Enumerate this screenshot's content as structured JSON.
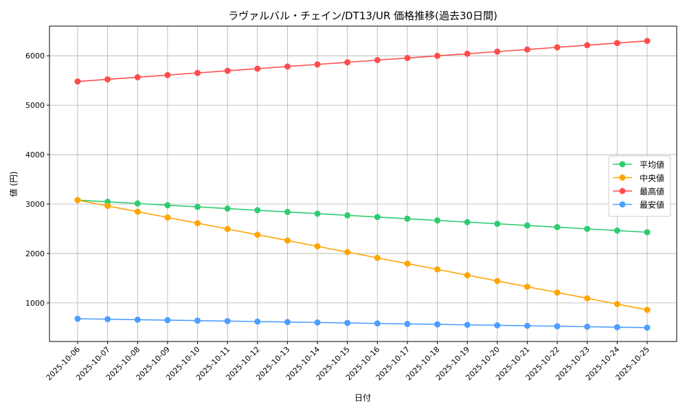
{
  "chart_data": {
    "type": "line",
    "title": "ラヴァルバル・チェイン/DT13/UR 価格推移(過去30日間)",
    "xlabel": "日付",
    "ylabel": "値 (円)",
    "ylim": [
      220,
      6600
    ],
    "yticks": [
      1000,
      2000,
      3000,
      4000,
      5000,
      6000
    ],
    "grid": true,
    "legend_position": "center-right",
    "x": [
      "2025-10-06",
      "2025-10-07",
      "2025-10-08",
      "2025-10-09",
      "2025-10-10",
      "2025-10-11",
      "2025-10-12",
      "2025-10-13",
      "2025-10-14",
      "2025-10-15",
      "2025-10-16",
      "2025-10-17",
      "2025-10-18",
      "2025-10-19",
      "2025-10-20",
      "2025-10-21",
      "2025-10-22",
      "2025-10-23",
      "2025-10-24",
      "2025-10-25"
    ],
    "series": [
      {
        "name": "平均値",
        "color": "#2ecc71",
        "values": [
          3080,
          3046,
          3012,
          2977,
          2943,
          2909,
          2875,
          2841,
          2806,
          2772,
          2738,
          2704,
          2669,
          2635,
          2601,
          2567,
          2533,
          2498,
          2464,
          2430
        ]
      },
      {
        "name": "中央値",
        "color": "#ffa500",
        "values": [
          3080,
          2963,
          2846,
          2729,
          2613,
          2496,
          2379,
          2262,
          2145,
          2028,
          1912,
          1795,
          1678,
          1561,
          1444,
          1327,
          1211,
          1094,
          977,
          860
        ]
      },
      {
        "name": "最高値",
        "color": "#ff4d4d",
        "values": [
          5480,
          5523,
          5566,
          5609,
          5653,
          5696,
          5739,
          5782,
          5825,
          5868,
          5912,
          5955,
          5998,
          6041,
          6084,
          6127,
          6171,
          6214,
          6257,
          6300
        ]
      },
      {
        "name": "最安値",
        "color": "#4d9eff",
        "values": [
          680,
          671,
          661,
          652,
          642,
          633,
          623,
          614,
          604,
          595,
          585,
          576,
          566,
          557,
          547,
          538,
          528,
          519,
          509,
          500
        ]
      }
    ]
  }
}
